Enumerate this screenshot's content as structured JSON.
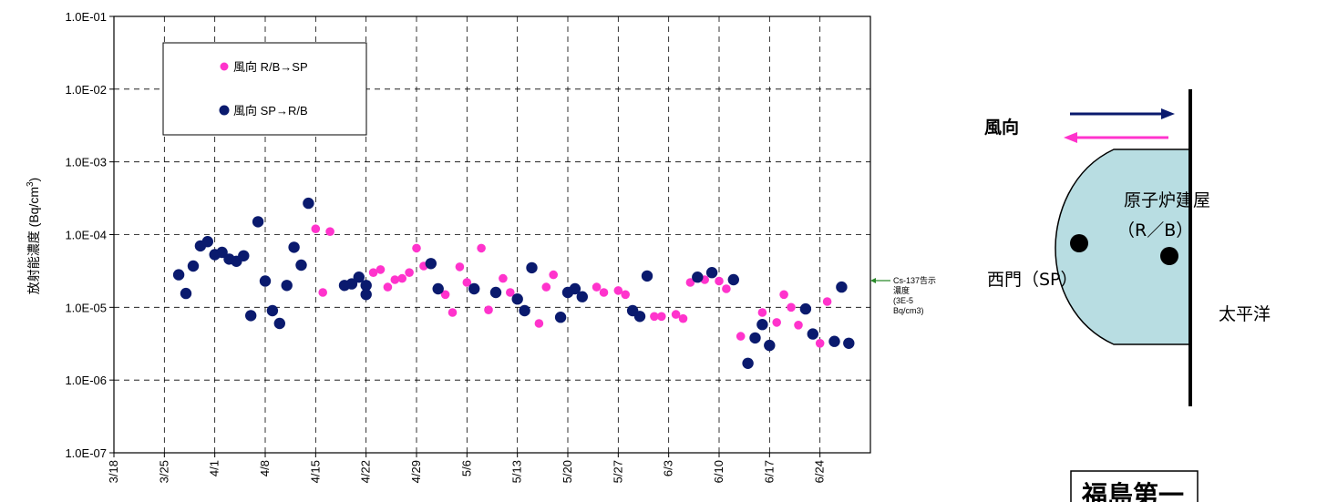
{
  "chart_data": {
    "type": "scatter",
    "ylabel": "放射能濃度 (Bq/cm3)",
    "y_scale": "log",
    "ylim": [
      1e-07,
      0.1
    ],
    "y_tick_labels": [
      "1.0E-07",
      "1.0E-06",
      "1.0E-05",
      "1.0E-04",
      "1.0E-03",
      "1.0E-02",
      "1.0E-01"
    ],
    "x_domain": [
      "2011-03-18",
      "2011-07-01"
    ],
    "x_tick_labels": [
      "3/18",
      "3/25",
      "4/1",
      "4/8",
      "4/15",
      "4/22",
      "4/29",
      "5/6",
      "5/13",
      "5/20",
      "5/27",
      "6/3",
      "6/10",
      "6/17",
      "6/24"
    ],
    "grid": true,
    "legend_position": "top-left",
    "series": [
      {
        "name": "風向 R/B→SP",
        "color": "#ff33cc",
        "points": [
          [
            "2011-04-15",
            0.00012
          ],
          [
            "2011-04-16",
            1.6e-05
          ],
          [
            "2011-04-17",
            0.00011
          ],
          [
            "2011-04-23",
            3e-05
          ],
          [
            "2011-04-24",
            3.3e-05
          ],
          [
            "2011-04-25",
            1.9e-05
          ],
          [
            "2011-04-26",
            2.4e-05
          ],
          [
            "2011-04-27",
            2.5e-05
          ],
          [
            "2011-04-28",
            3e-05
          ],
          [
            "2011-04-29",
            6.5e-05
          ],
          [
            "2011-04-30",
            3.7e-05
          ],
          [
            "2011-05-03",
            1.5e-05
          ],
          [
            "2011-05-04",
            8.5e-06
          ],
          [
            "2011-05-05",
            3.6e-05
          ],
          [
            "2011-05-06",
            2.2e-05
          ],
          [
            "2011-05-08",
            6.5e-05
          ],
          [
            "2011-05-09",
            9.2e-06
          ],
          [
            "2011-05-11",
            2.5e-05
          ],
          [
            "2011-05-12",
            1.6e-05
          ],
          [
            "2011-05-16",
            6e-06
          ],
          [
            "2011-05-17",
            1.9e-05
          ],
          [
            "2011-05-18",
            2.8e-05
          ],
          [
            "2011-05-24",
            1.9e-05
          ],
          [
            "2011-05-25",
            1.6e-05
          ],
          [
            "2011-05-27",
            1.7e-05
          ],
          [
            "2011-05-28",
            1.5e-05
          ],
          [
            "2011-06-01",
            7.5e-06
          ],
          [
            "2011-06-02",
            7.5e-06
          ],
          [
            "2011-06-04",
            8e-06
          ],
          [
            "2011-06-05",
            7e-06
          ],
          [
            "2011-06-06",
            2.2e-05
          ],
          [
            "2011-06-08",
            2.4e-05
          ],
          [
            "2011-06-10",
            2.3e-05
          ],
          [
            "2011-06-11",
            1.8e-05
          ],
          [
            "2011-06-13",
            4e-06
          ],
          [
            "2011-06-16",
            8.5e-06
          ],
          [
            "2011-06-18",
            6.2e-06
          ],
          [
            "2011-06-19",
            1.5e-05
          ],
          [
            "2011-06-20",
            1e-05
          ],
          [
            "2011-06-21",
            5.7e-06
          ],
          [
            "2011-06-24",
            3.2e-06
          ],
          [
            "2011-06-25",
            1.2e-05
          ]
        ]
      },
      {
        "name": "風向 SP→R/B",
        "color": "#0a1a6e",
        "points": [
          [
            "2011-03-27",
            2.8e-05
          ],
          [
            "2011-03-28",
            1.55e-05
          ],
          [
            "2011-03-29",
            3.7e-05
          ],
          [
            "2011-03-30",
            7e-05
          ],
          [
            "2011-03-31",
            8e-05
          ],
          [
            "2011-04-01",
            5.3e-05
          ],
          [
            "2011-04-02",
            5.7e-05
          ],
          [
            "2011-04-03",
            4.6e-05
          ],
          [
            "2011-04-04",
            4.3e-05
          ],
          [
            "2011-04-05",
            5.1e-05
          ],
          [
            "2011-04-06",
            7.7e-06
          ],
          [
            "2011-04-07",
            0.00015
          ],
          [
            "2011-04-08",
            2.3e-05
          ],
          [
            "2011-04-09",
            9e-06
          ],
          [
            "2011-04-10",
            6e-06
          ],
          [
            "2011-04-11",
            2e-05
          ],
          [
            "2011-04-12",
            6.7e-05
          ],
          [
            "2011-04-13",
            3.8e-05
          ],
          [
            "2011-04-14",
            0.00027
          ],
          [
            "2011-04-19",
            2e-05
          ],
          [
            "2011-04-20",
            2.1e-05
          ],
          [
            "2011-04-21",
            2.6e-05
          ],
          [
            "2011-04-22",
            2e-05
          ],
          [
            "2011-04-22",
            1.5e-05
          ],
          [
            "2011-05-01",
            4e-05
          ],
          [
            "2011-05-02",
            1.8e-05
          ],
          [
            "2011-05-07",
            1.8e-05
          ],
          [
            "2011-05-10",
            1.6e-05
          ],
          [
            "2011-05-13",
            1.3e-05
          ],
          [
            "2011-05-14",
            9e-06
          ],
          [
            "2011-05-15",
            3.5e-05
          ],
          [
            "2011-05-19",
            7.3e-06
          ],
          [
            "2011-05-20",
            1.6e-05
          ],
          [
            "2011-05-21",
            1.8e-05
          ],
          [
            "2011-05-22",
            1.4e-05
          ],
          [
            "2011-05-29",
            9e-06
          ],
          [
            "2011-05-30",
            7.5e-06
          ],
          [
            "2011-05-31",
            2.7e-05
          ],
          [
            "2011-06-07",
            2.6e-05
          ],
          [
            "2011-06-09",
            3e-05
          ],
          [
            "2011-06-12",
            2.4e-05
          ],
          [
            "2011-06-14",
            1.7e-06
          ],
          [
            "2011-06-15",
            3.8e-06
          ],
          [
            "2011-06-16",
            5.8e-06
          ],
          [
            "2011-06-17",
            3e-06
          ],
          [
            "2011-06-22",
            9.5e-06
          ],
          [
            "2011-06-23",
            4.3e-06
          ],
          [
            "2011-06-26",
            3.4e-06
          ],
          [
            "2011-06-27",
            1.9e-05
          ],
          [
            "2011-06-28",
            3.2e-06
          ]
        ]
      }
    ],
    "annotation": {
      "lines": [
        "Cs-137告示",
        "濃度",
        "(3E-5",
        "Bq/cm3)"
      ],
      "value": 3e-05
    }
  },
  "diagram": {
    "wind_label": "風向",
    "building_label_line1": "原子炉建屋",
    "building_label_line2": "（R／B）",
    "gate_label": "西門（SP）",
    "ocean_label": "太平洋",
    "station_label": "福島第一",
    "arrow_right_color": "#0a1a6e",
    "arrow_left_color": "#ff33cc",
    "building_fill": "#b8dde2"
  }
}
